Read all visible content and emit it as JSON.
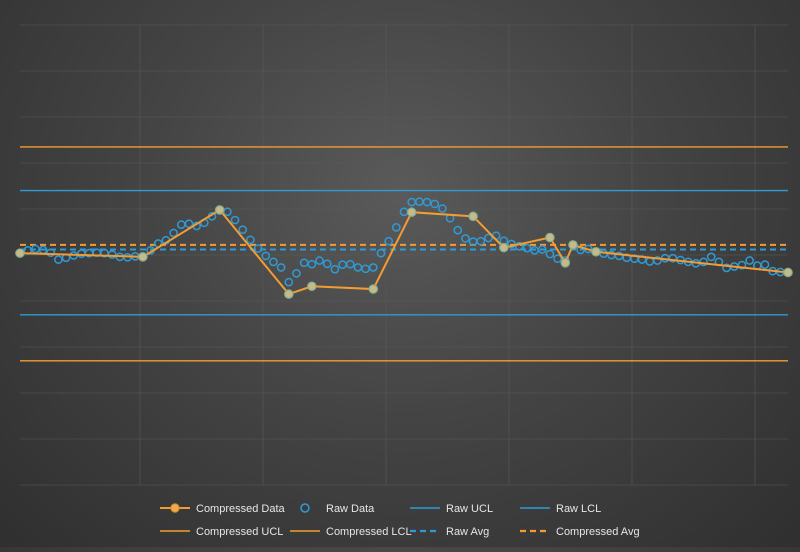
{
  "chart_data": {
    "type": "line",
    "title": "",
    "xlabel": "",
    "ylabel": "",
    "grid": true,
    "legend_placement": "bottom",
    "x_count": 100,
    "y_range": [
      0,
      100
    ],
    "colors": {
      "compressed": "#f39c32",
      "raw": "#2f9bd6",
      "background": "#444444",
      "grid": "#5a5a5a"
    },
    "series": [
      {
        "name": "Compressed Data",
        "kind": "line-markers",
        "x": [
          0,
          16,
          26,
          35,
          38,
          46,
          51,
          59,
          63,
          69,
          71,
          72,
          75,
          100
        ],
        "values": [
          50.4,
          49.6,
          59.8,
          41.5,
          43.2,
          42.6,
          59.3,
          58.4,
          51.6,
          53.8,
          48.3,
          52.2,
          50.7,
          46.2
        ]
      },
      {
        "name": "Raw Data",
        "kind": "markers",
        "x": [
          0,
          1,
          2,
          3,
          4,
          5,
          6,
          7,
          8,
          9,
          10,
          11,
          12,
          13,
          14,
          15,
          16,
          17,
          18,
          19,
          20,
          21,
          22,
          23,
          24,
          25,
          26,
          27,
          28,
          29,
          30,
          31,
          32,
          33,
          34,
          35,
          36,
          37,
          38,
          39,
          40,
          41,
          42,
          43,
          44,
          45,
          46,
          47,
          48,
          49,
          50,
          51,
          52,
          53,
          54,
          55,
          56,
          57,
          58,
          59,
          60,
          61,
          62,
          63,
          64,
          65,
          66,
          67,
          68,
          69,
          70,
          71,
          72,
          73,
          74,
          75,
          76,
          77,
          78,
          79,
          80,
          81,
          82,
          83,
          84,
          85,
          86,
          87,
          88,
          89,
          90,
          91,
          92,
          93,
          94,
          95,
          96,
          97,
          98,
          99,
          100
        ],
        "values": [
          50.4,
          51.0,
          51.3,
          51.1,
          50.5,
          49.0,
          49.4,
          49.9,
          50.3,
          50.4,
          50.5,
          50.4,
          50.1,
          49.6,
          49.5,
          49.7,
          49.6,
          51.0,
          52.5,
          53.2,
          54.8,
          56.6,
          56.8,
          56.3,
          57.0,
          58.4,
          59.7,
          59.4,
          57.6,
          55.5,
          53.3,
          51.4,
          49.8,
          48.5,
          47.3,
          44.1,
          46.0,
          48.3,
          48.0,
          48.8,
          48.1,
          46.9,
          47.9,
          48.0,
          47.3,
          47.0,
          47.3,
          50.4,
          53.0,
          56.0,
          59.4,
          61.5,
          61.6,
          61.5,
          61.1,
          60.1,
          58.0,
          55.4,
          53.6,
          52.9,
          53.0,
          53.7,
          54.2,
          53.1,
          52.4,
          51.9,
          51.5,
          51.0,
          51.2,
          50.2,
          49.2,
          48.8,
          52.2,
          51.1,
          51.3,
          50.7,
          50.3,
          50.0,
          49.8,
          49.4,
          49.2,
          49.0,
          48.6,
          48.8,
          49.3,
          49.3,
          48.9,
          48.5,
          48.2,
          48.5,
          49.6,
          48.5,
          47.2,
          47.5,
          47.8,
          48.8,
          47.7,
          47.9,
          46.5,
          46.3,
          46.2
        ]
      },
      {
        "name": "Raw UCL",
        "kind": "hline",
        "value": 64.0
      },
      {
        "name": "Raw LCL",
        "kind": "hline",
        "value": 37.0
      },
      {
        "name": "Compressed UCL",
        "kind": "hline",
        "value": 73.5
      },
      {
        "name": "Compressed LCL",
        "kind": "hline",
        "value": 27.0
      },
      {
        "name": "Raw Avg",
        "kind": "hline-dashed",
        "value": 51.2
      },
      {
        "name": "Compressed Avg",
        "kind": "hline-dashed",
        "value": 52.2
      }
    ],
    "legend": [
      [
        "Compressed Data",
        "Raw Data",
        "Raw UCL",
        "Raw LCL"
      ],
      [
        "Compressed UCL",
        "Compressed LCL",
        "Raw Avg",
        "Compressed Avg"
      ]
    ]
  }
}
